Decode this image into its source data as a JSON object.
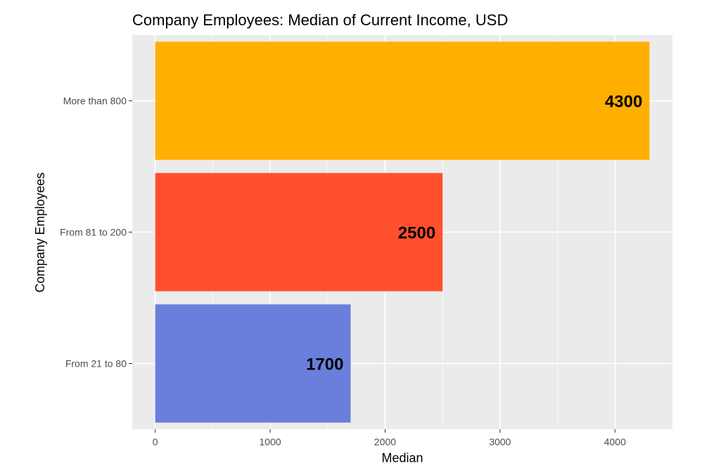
{
  "chart_data": {
    "type": "bar",
    "orientation": "horizontal",
    "title": "Company Employees: Median of Current Income, USD",
    "xlabel": "Median",
    "ylabel": "Company Employees",
    "categories": [
      "From 21 to 80",
      "From 81 to 200",
      "More than 800"
    ],
    "values": [
      1700,
      2500,
      4300
    ],
    "data_labels": [
      "1700",
      "2500",
      "4300"
    ],
    "colors": [
      "#6a7fdb",
      "#ff4f2d",
      "#ffaf00"
    ],
    "xlim": [
      -200,
      4500
    ],
    "xticks": [
      0,
      1000,
      2000,
      3000,
      4000
    ],
    "xtick_labels": [
      "0",
      "1000",
      "2000",
      "3000",
      "4000"
    ],
    "grid": true,
    "panel_background": "#ebebeb"
  }
}
